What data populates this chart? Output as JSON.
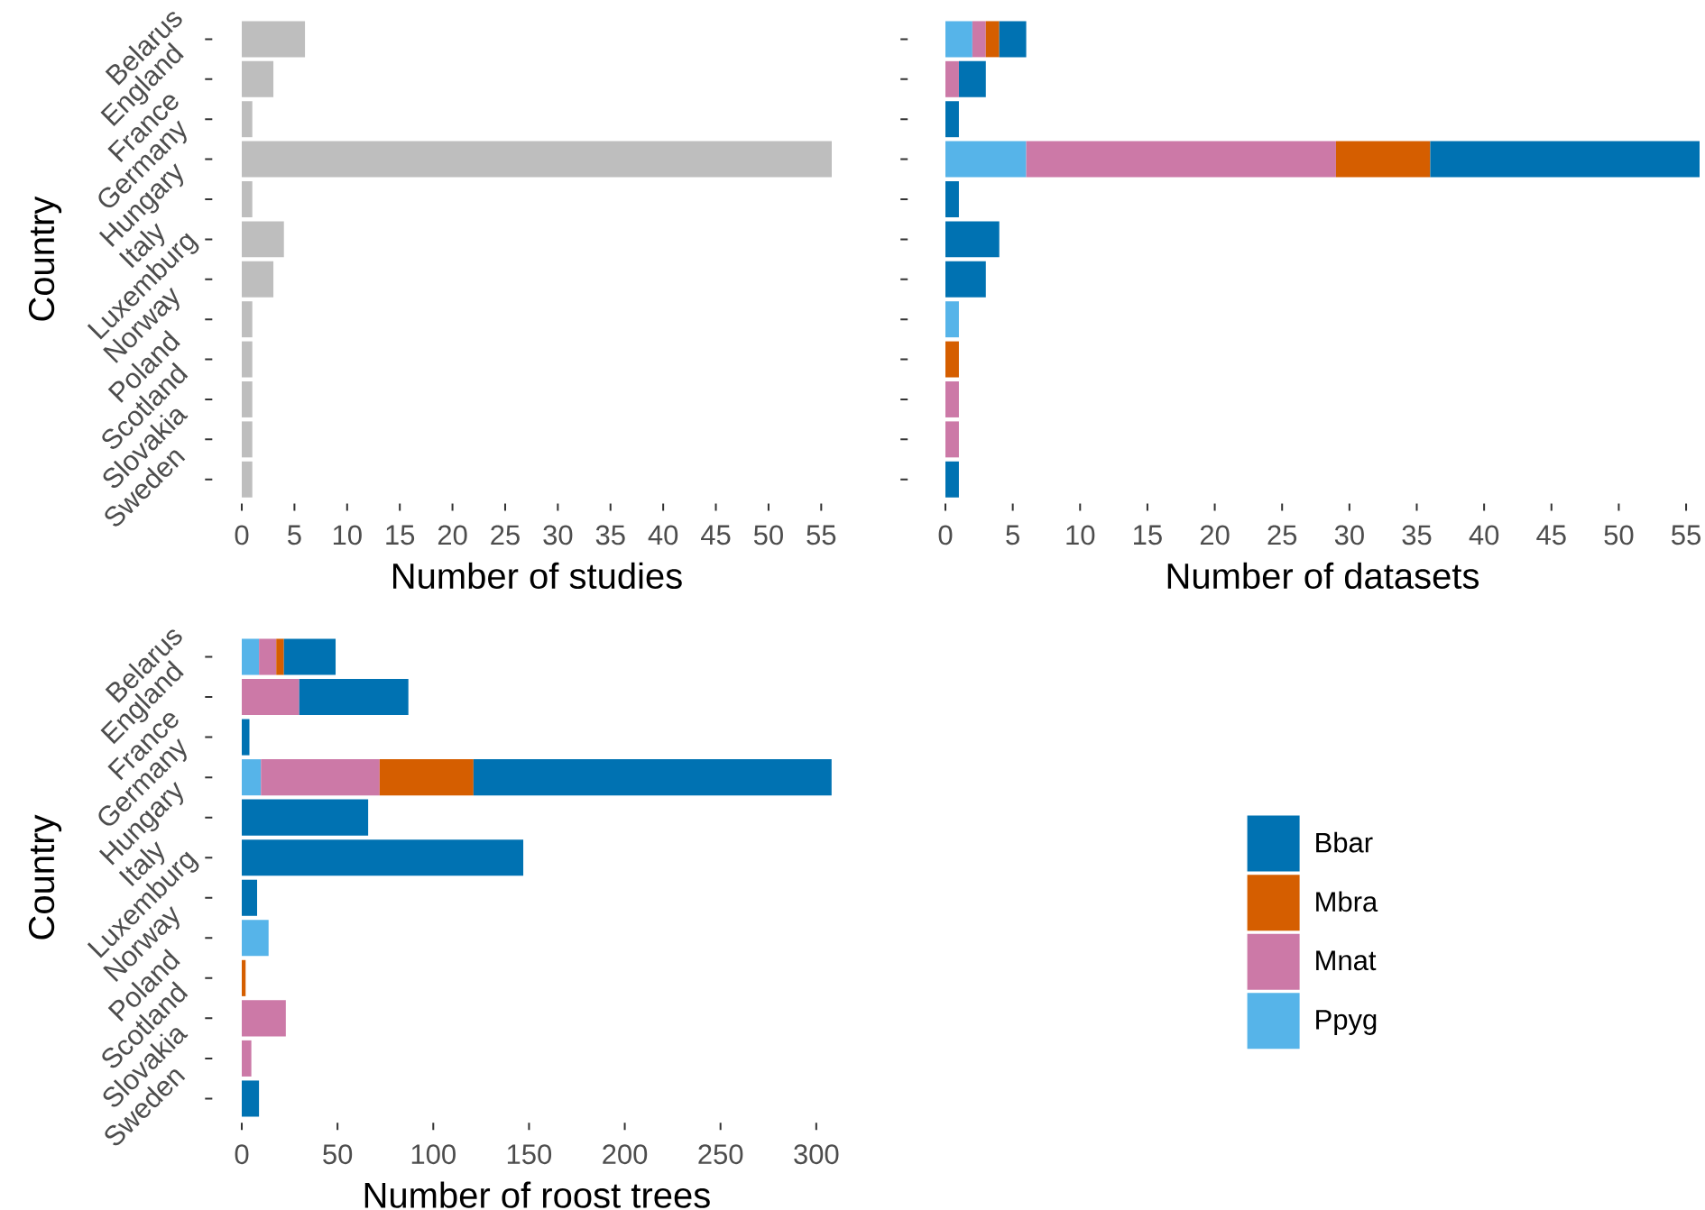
{
  "chart_data": [
    {
      "type": "bar",
      "orientation": "horizontal",
      "categories": [
        "Belarus",
        "England",
        "France",
        "Germany",
        "Hungary",
        "Italy",
        "Luxemburg",
        "Norway",
        "Poland",
        "Scotland",
        "Slovakia",
        "Sweden"
      ],
      "values": [
        6,
        3,
        1,
        56,
        1,
        4,
        3,
        1,
        1,
        1,
        1,
        1
      ],
      "color": "#bebebe",
      "xlabel": "Number of studies",
      "ylabel": "Country",
      "xlim": [
        0,
        56
      ],
      "xticks": [
        0,
        5,
        10,
        15,
        20,
        25,
        30,
        35,
        40,
        45,
        50,
        55
      ]
    },
    {
      "type": "bar",
      "orientation": "horizontal",
      "stacked": true,
      "categories": [
        null,
        null,
        null,
        null,
        null,
        null,
        null,
        null,
        null,
        null,
        null,
        null
      ],
      "series": [
        {
          "color": "#56b4e9",
          "values": [
            2,
            null,
            null,
            6,
            null,
            null,
            null,
            1,
            null,
            null,
            null,
            null
          ]
        },
        {
          "color": "#cc79a7",
          "values": [
            1,
            1,
            null,
            23,
            null,
            null,
            null,
            null,
            null,
            1,
            1,
            null
          ]
        },
        {
          "color": "#d55e00",
          "values": [
            1,
            null,
            null,
            7,
            null,
            null,
            null,
            null,
            1,
            null,
            null,
            null
          ]
        },
        {
          "color": "#0072b2",
          "values": [
            2,
            2,
            1,
            20,
            1,
            4,
            3,
            null,
            null,
            null,
            null,
            1
          ]
        }
      ],
      "xlabel": "Number of datasets",
      "xlim": [
        0,
        56
      ],
      "xticks": [
        0,
        5,
        10,
        15,
        20,
        25,
        30,
        35,
        40,
        45,
        50,
        55
      ]
    },
    {
      "type": "bar",
      "orientation": "horizontal",
      "stacked": true,
      "categories": [
        "Belarus",
        "England",
        "France",
        "Germany",
        "Hungary",
        "Italy",
        "Luxemburg",
        "Norway",
        "Poland",
        "Scotland",
        "Slovakia",
        "Sweden"
      ],
      "series": [
        {
          "name": "Ppyg",
          "color": "#56b4e9",
          "values": [
            9,
            null,
            null,
            10,
            null,
            null,
            null,
            14,
            null,
            null,
            null,
            null
          ]
        },
        {
          "name": "Mnat",
          "color": "#cc79a7",
          "values": [
            9,
            30,
            null,
            62,
            null,
            null,
            null,
            null,
            null,
            23,
            5,
            null
          ]
        },
        {
          "name": "Mbra",
          "color": "#d55e00",
          "values": [
            4,
            null,
            null,
            49,
            null,
            null,
            null,
            null,
            2,
            null,
            null,
            null
          ]
        },
        {
          "name": "Bbar",
          "color": "#0072b2",
          "values": [
            27,
            57,
            4,
            187,
            66,
            147,
            8,
            null,
            null,
            null,
            null,
            9
          ]
        }
      ],
      "xlabel": "Number of roost trees",
      "ylabel": "Country",
      "xlim": [
        0,
        308
      ],
      "xticks": [
        0,
        50,
        100,
        150,
        200,
        250,
        300
      ],
      "legend": "right"
    }
  ]
}
